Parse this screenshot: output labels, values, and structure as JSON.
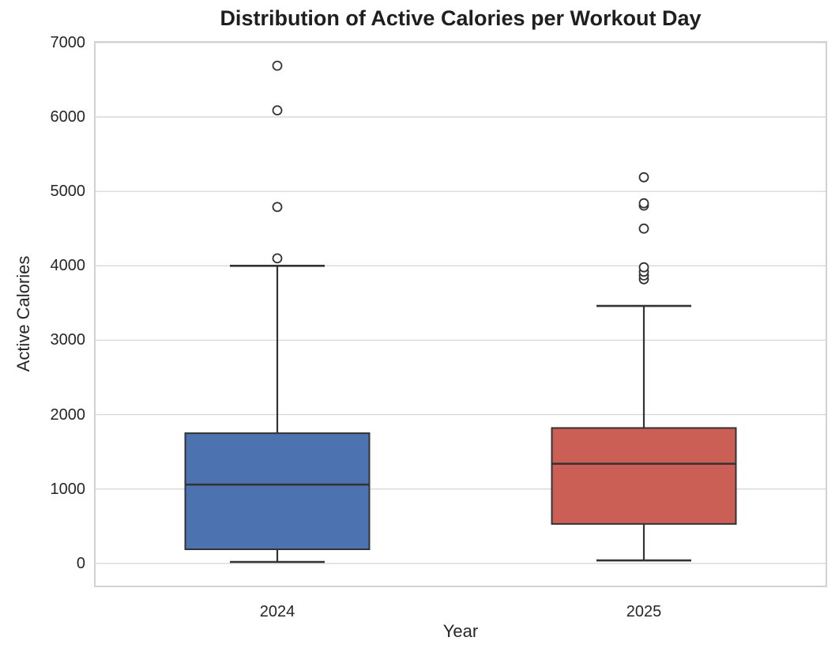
{
  "chart_data": {
    "type": "box",
    "title": "Distribution of Active Calories per Workout Day",
    "xlabel": "Year",
    "ylabel": "Active Calories",
    "categories": [
      "2024",
      "2025"
    ],
    "yticks": [
      0,
      1000,
      2000,
      3000,
      4000,
      5000,
      6000,
      7000
    ],
    "ylim": [
      -320,
      7020
    ],
    "grid": "horizontal",
    "legend": "none",
    "colors": {
      "line": "#333333",
      "grid": "#d9d9d9",
      "spine": "#d2d2d2",
      "text": "#262626",
      "outlier_fill": "#ffffff"
    },
    "series": [
      {
        "name": "2024",
        "color": "#4c72b0",
        "whisker_low": 20,
        "q1": 190,
        "median": 1060,
        "q3": 1750,
        "whisker_high": 4000,
        "outliers": [
          4100,
          4790,
          6090,
          6690
        ]
      },
      {
        "name": "2025",
        "color": "#cc5f55",
        "whisker_low": 40,
        "q1": 530,
        "median": 1340,
        "q3": 1820,
        "whisker_high": 3460,
        "outliers": [
          3820,
          3870,
          3920,
          3980,
          4500,
          4810,
          4840,
          5190
        ]
      }
    ]
  }
}
